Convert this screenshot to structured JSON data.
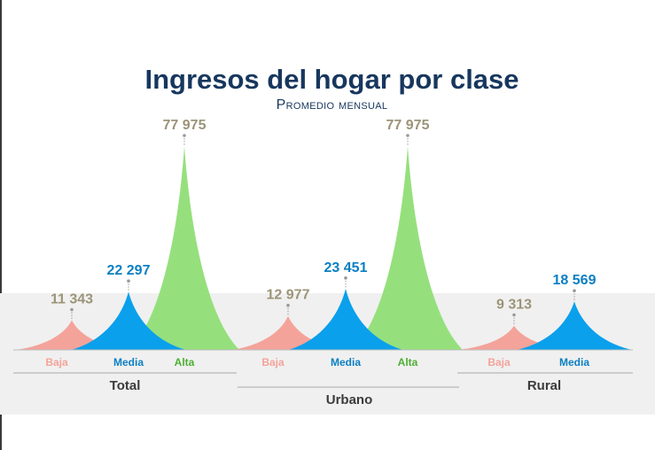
{
  "title": "Ingresos del hogar por clase",
  "subtitle": "Promedio mensual",
  "chart_data": {
    "type": "area",
    "title": "Ingresos del hogar por clase",
    "subtitle": "Promedio mensual",
    "ylim": [
      0,
      82000
    ],
    "colors": {
      "Baja": "#f4a39a",
      "Media": "#0aa0ec",
      "Alta": "#95e07c"
    },
    "label_colors": {
      "Baja": "#f4a39a",
      "Media": "#0b7fc2",
      "Alta": "#4caf32"
    },
    "value_colors": {
      "Baja": "#9c9478",
      "Media": "#0b7fc2",
      "Alta": "#9c9478"
    },
    "groups": [
      {
        "name": "Total",
        "classes": [
          {
            "label": "Baja",
            "value": 11343,
            "display": "11 343"
          },
          {
            "label": "Media",
            "value": 22297,
            "display": "22 297"
          },
          {
            "label": "Alta",
            "value": 77975,
            "display": "77 975"
          }
        ]
      },
      {
        "name": "Urbano",
        "classes": [
          {
            "label": "Baja",
            "value": 12977,
            "display": "12 977"
          },
          {
            "label": "Media",
            "value": 23451,
            "display": "23 451"
          },
          {
            "label": "Alta",
            "value": 77975,
            "display": "77 975"
          }
        ]
      },
      {
        "name": "Rural",
        "classes": [
          {
            "label": "Baja",
            "value": 9313,
            "display": "9 313"
          },
          {
            "label": "Media",
            "value": 18569,
            "display": "18 569"
          }
        ]
      }
    ]
  }
}
